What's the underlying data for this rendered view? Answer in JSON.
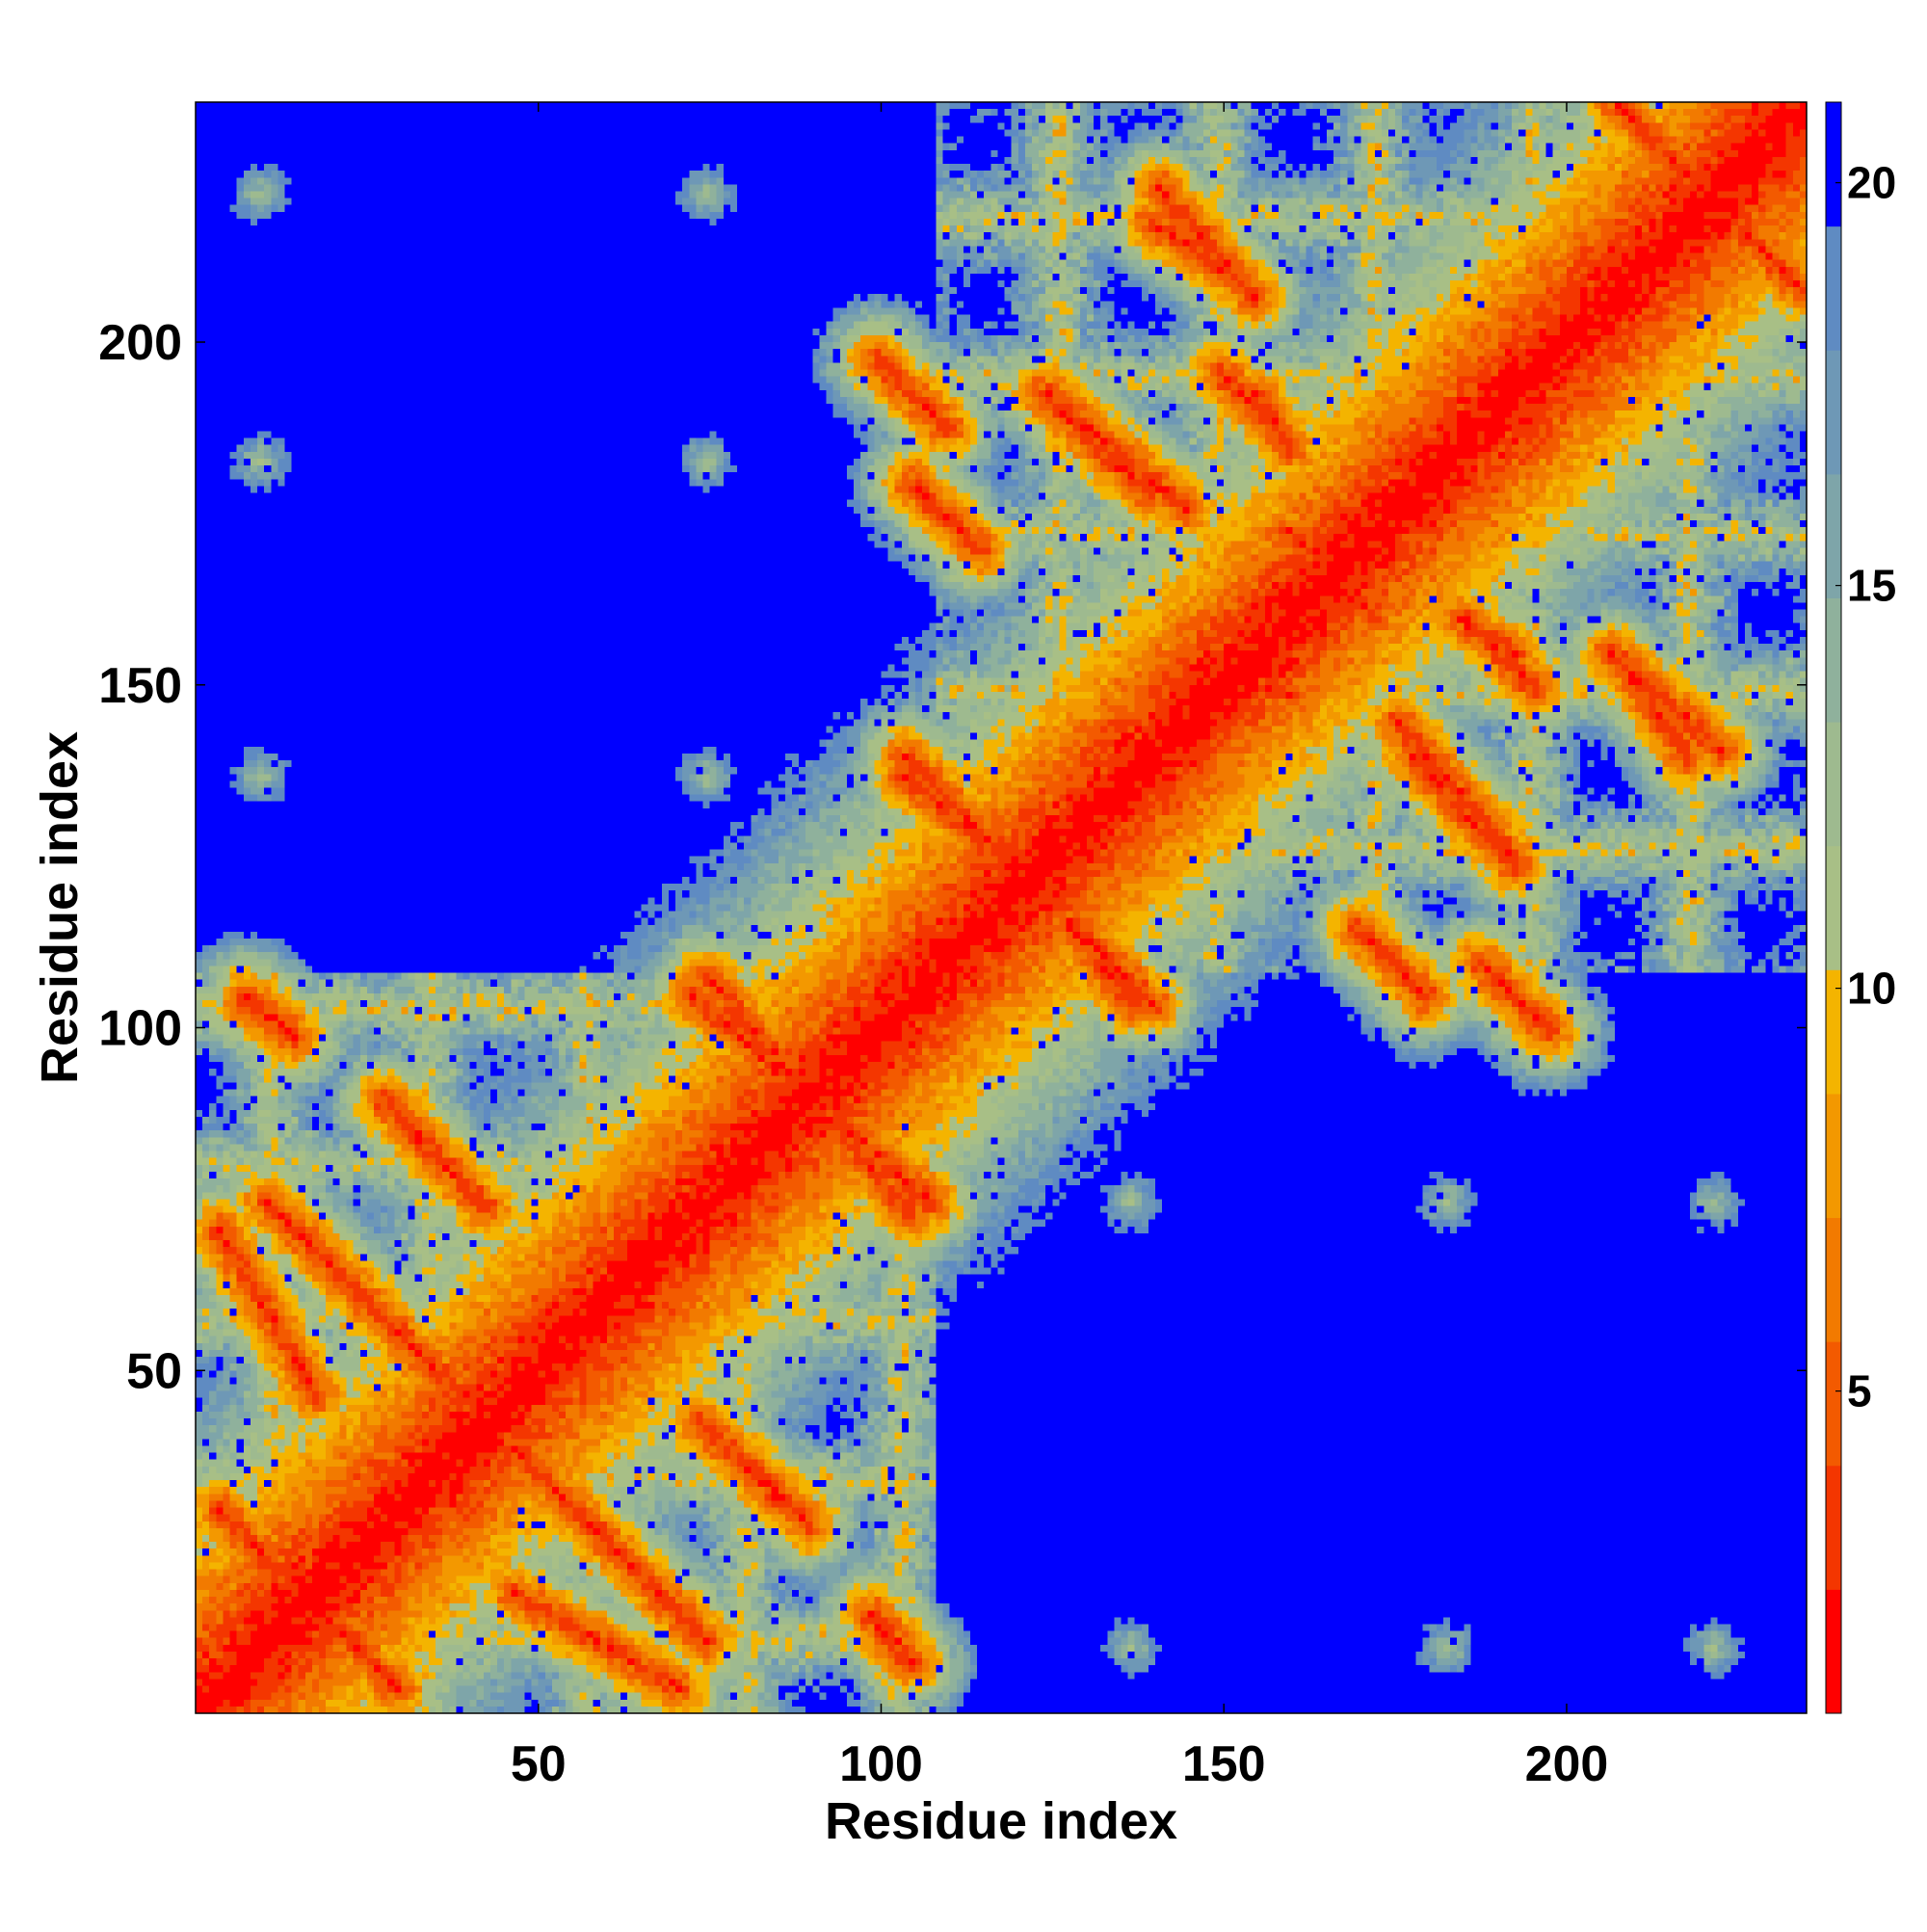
{
  "chart_data": {
    "type": "heatmap",
    "title": "",
    "xlabel": "Residue index",
    "ylabel": "Residue index",
    "xlim": [
      0,
      235
    ],
    "ylim": [
      0,
      235
    ],
    "x_ticks": [
      50,
      100,
      150,
      200
    ],
    "y_ticks": [
      50,
      100,
      150,
      200
    ],
    "x_tick_labels": [
      "50",
      "100",
      "150",
      "200"
    ],
    "y_tick_labels": [
      "50",
      "100",
      "150",
      "200"
    ],
    "colorbar": {
      "range": [
        1,
        21
      ],
      "ticks": [
        5,
        10,
        15,
        20
      ],
      "tick_labels": [
        "5",
        "10",
        "15",
        "20"
      ],
      "colors": [
        "#ff0000",
        "#f43600",
        "#f35a00",
        "#f27a00",
        "#f39800",
        "#f4b400",
        "#a8bf86",
        "#9eba8f",
        "#8fb19c",
        "#7ea5a9",
        "#6e98b6",
        "#5f8bc2",
        "#0000ff"
      ]
    },
    "structure": {
      "n_residues": 235,
      "domains": [
        [
          1,
          108
        ],
        [
          109,
          235
        ]
      ],
      "cutoff": 21,
      "contact_lines": [
        {
          "kind": "anti",
          "a": [
            4,
            30
          ],
          "b": [
            30,
            4
          ]
        },
        {
          "kind": "anti",
          "a": [
            11,
            75
          ],
          "b": [
            74,
            12
          ]
        },
        {
          "kind": "anti",
          "a": [
            28,
            90
          ],
          "b": [
            37,
            80
          ]
        },
        {
          "kind": "anti",
          "a": [
            73,
            105
          ],
          "b": [
            108,
            75
          ]
        },
        {
          "kind": "anti",
          "a": [
            74,
            43
          ],
          "b": [
            88,
            30
          ]
        },
        {
          "kind": "anti",
          "a": [
            47,
            18
          ],
          "b": [
            71,
            4
          ]
        },
        {
          "kind": "anti",
          "a": [
            100,
            14
          ],
          "b": [
            105,
            8
          ]
        },
        {
          "kind": "anti",
          "a": [
            8,
            104
          ],
          "b": [
            15,
            99
          ]
        },
        {
          "kind": "anti",
          "a": [
            104,
            140
          ],
          "b": [
            116,
            128
          ]
        },
        {
          "kind": "anti",
          "a": [
            125,
            119
          ],
          "b": [
            137,
            104
          ]
        },
        {
          "kind": "anti",
          "a": [
            125,
            193
          ],
          "b": [
            145,
            176
          ]
        },
        {
          "kind": "anti",
          "a": [
            141,
            223
          ],
          "b": [
            155,
            207
          ]
        },
        {
          "kind": "anti",
          "a": [
            155,
            193
          ],
          "b": [
            160,
            185
          ]
        },
        {
          "kind": "anti",
          "a": [
            178,
            140
          ],
          "b": [
            193,
            124
          ]
        },
        {
          "kind": "anti",
          "a": [
            186,
            160
          ],
          "b": [
            196,
            150
          ]
        },
        {
          "kind": "anti",
          "a": [
            210,
            152
          ],
          "b": [
            218,
            140
          ]
        },
        {
          "kind": "anti",
          "a": [
            208,
            235
          ],
          "b": [
            235,
            208
          ]
        },
        {
          "kind": "anti",
          "a": [
            160,
            173
          ],
          "b": [
            173,
            160
          ]
        },
        {
          "kind": "anti",
          "a": [
            149,
            160
          ],
          "b": [
            160,
            149
          ]
        },
        {
          "kind": "anti",
          "a": [
            188,
            110
          ],
          "b": [
            198,
            100
          ]
        },
        {
          "kind": "anti",
          "a": [
            105,
            180
          ],
          "b": [
            115,
            170
          ]
        }
      ],
      "contact_spots": [
        {
          "x": 10,
          "y": 137
        },
        {
          "x": 75,
          "y": 137
        },
        {
          "x": 10,
          "y": 183
        },
        {
          "x": 75,
          "y": 183
        },
        {
          "x": 10,
          "y": 222
        },
        {
          "x": 75,
          "y": 222
        },
        {
          "x": 137,
          "y": 75
        },
        {
          "x": 183,
          "y": 75
        },
        {
          "x": 137,
          "y": 10
        },
        {
          "x": 183,
          "y": 10
        },
        {
          "x": 222,
          "y": 10
        },
        {
          "x": 222,
          "y": 75
        }
      ]
    }
  }
}
